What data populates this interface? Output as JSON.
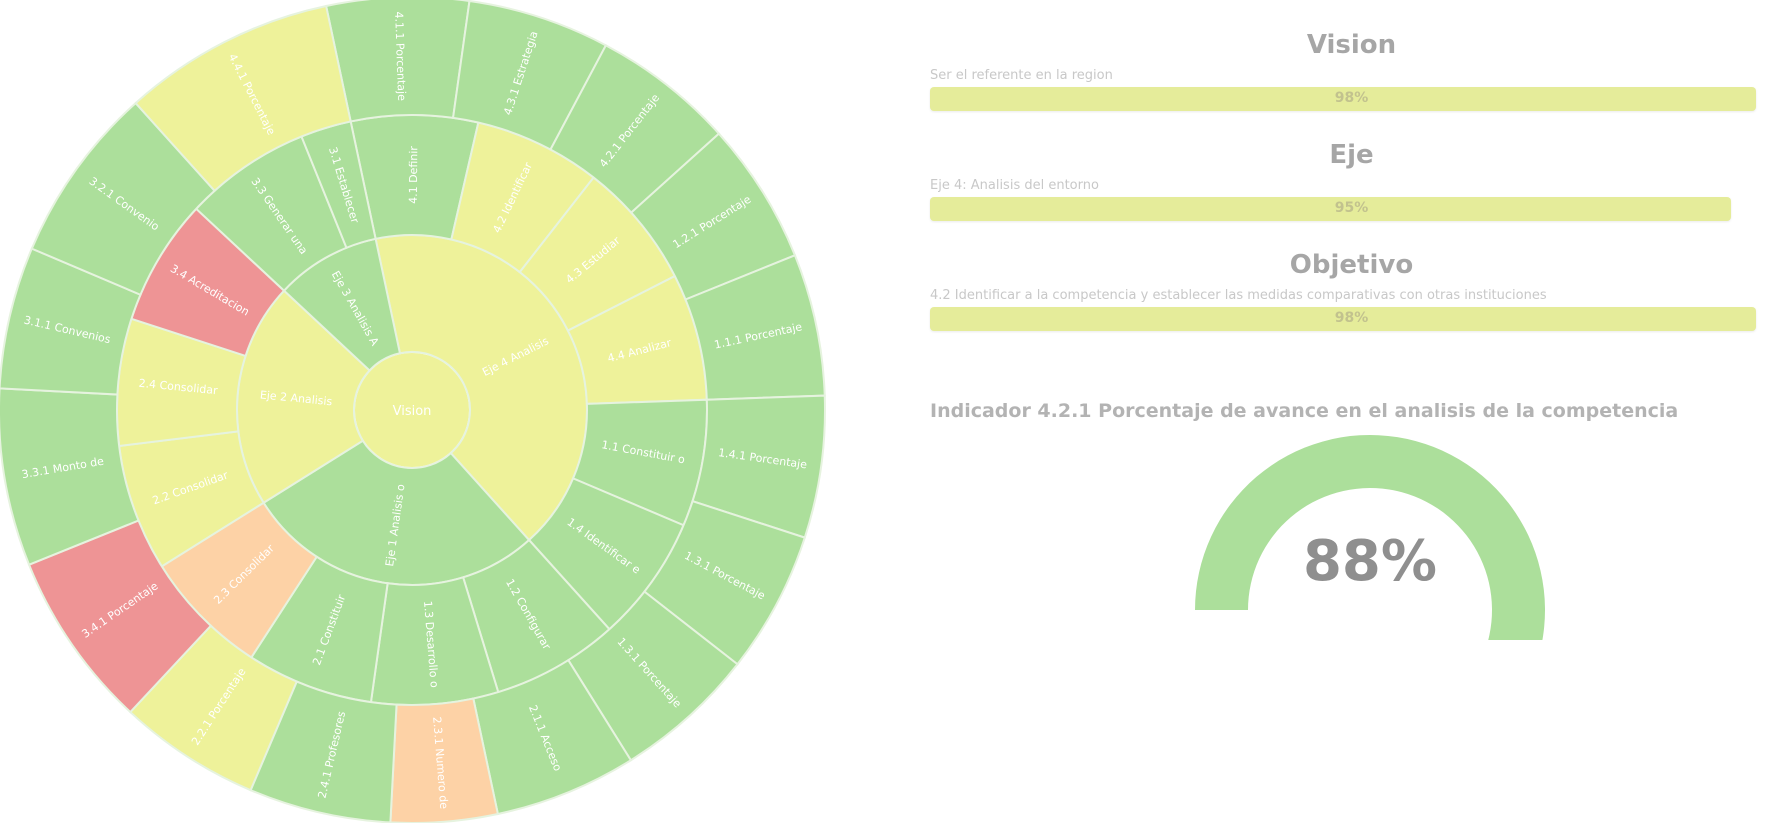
{
  "colors": {
    "green": "#acdf9b",
    "yellow": "#eef29a",
    "orange": "#fdd2a6",
    "red": "#ee9495",
    "bar_fill": "#e5ec9a",
    "divider": "#e6f3df"
  },
  "chart_data": {
    "type": "sunburst",
    "root": "Vision",
    "rings": [
      {
        "level": 1,
        "segments": [
          {
            "label": "Eje 4 Analisis",
            "start": 0,
            "end": 150,
            "color": "yellow"
          },
          {
            "label": "Eje 1 Analisis o",
            "start": 150,
            "end": 250,
            "color": "green"
          },
          {
            "label": "Eje 2 Analisis",
            "start": 250,
            "end": 325,
            "color": "yellow"
          },
          {
            "label": "Eje 3 Analisis A",
            "start": 325,
            "end": 360,
            "color": "green"
          }
        ]
      },
      {
        "level": 2,
        "segments": [
          {
            "label": "4.1 Definir",
            "start": 0,
            "end": 25,
            "color": "green"
          },
          {
            "label": "4.2 Identificar",
            "start": 25,
            "end": 50,
            "color": "yellow"
          },
          {
            "label": "4.3 Estudiar",
            "start": 50,
            "end": 75,
            "color": "yellow"
          },
          {
            "label": "4.4 Analizar",
            "start": 75,
            "end": 100,
            "color": "yellow"
          },
          {
            "label": "1.1 Constituir o",
            "start": 100,
            "end": 125,
            "color": "green"
          },
          {
            "label": "1.4 Identificar e",
            "start": 125,
            "end": 150,
            "color": "green"
          },
          {
            "label": "1.2 Configurar",
            "start": 150,
            "end": 175,
            "color": "green"
          },
          {
            "label": "1.3 Desarrollo o",
            "start": 175,
            "end": 200,
            "color": "green"
          },
          {
            "label": "2.1 Constituir",
            "start": 200,
            "end": 225,
            "color": "green"
          },
          {
            "label": "2.3 Consolidar",
            "start": 225,
            "end": 250,
            "color": "orange"
          },
          {
            "label": "2.2 Consolidar",
            "start": 250,
            "end": 275,
            "color": "yellow"
          },
          {
            "label": "2.4 Consolidar",
            "start": 275,
            "end": 300,
            "color": "yellow"
          },
          {
            "label": "3.4 Acreditacion",
            "start": 300,
            "end": 325,
            "color": "red"
          },
          {
            "label": "3.3 Generar una",
            "start": 325,
            "end": 350,
            "color": "green"
          },
          {
            "label": "3.1 Establecer",
            "start": 350,
            "end": 360,
            "color": "green"
          }
        ]
      },
      {
        "level": 3,
        "segments": [
          {
            "label": "4.1.1 Porcentaje",
            "start": 0,
            "end": 20,
            "color": "green"
          },
          {
            "label": "4.3.1 Estrategia",
            "start": 20,
            "end": 40,
            "color": "green"
          },
          {
            "label": "4.2.1 Porcentaje",
            "start": 40,
            "end": 60,
            "color": "green"
          },
          {
            "label": "1.2.1 Porcentaje",
            "start": 60,
            "end": 80,
            "color": "green"
          },
          {
            "label": "1.1.1 Porcentaje",
            "start": 80,
            "end": 100,
            "color": "green"
          },
          {
            "label": "1.4.1 Porcentaje",
            "start": 100,
            "end": 120,
            "color": "green"
          },
          {
            "label": "1.3.1 Porcentaje",
            "start": 120,
            "end": 140,
            "color": "green"
          },
          {
            "label": "1.3.1 Porcentaje",
            "start": 140,
            "end": 160,
            "color": "green"
          },
          {
            "label": "2.1.1 Acceso",
            "start": 160,
            "end": 180,
            "color": "green"
          },
          {
            "label": "2.3.1 Numero de",
            "start": 180,
            "end": 195,
            "color": "orange"
          },
          {
            "label": "2.4.1 Profesores",
            "start": 195,
            "end": 215,
            "color": "green"
          },
          {
            "label": "2.2.1 Porcentaje",
            "start": 215,
            "end": 235,
            "color": "yellow"
          },
          {
            "label": "3.4.1 Porcentaje",
            "start": 235,
            "end": 260,
            "color": "red"
          },
          {
            "label": "3.3.1 Monto de",
            "start": 260,
            "end": 285,
            "color": "green"
          },
          {
            "label": "3.1.1 Convenios",
            "start": 285,
            "end": 305,
            "color": "green"
          },
          {
            "label": "3.2.1 Convenio",
            "start": 305,
            "end": 330,
            "color": "green"
          },
          {
            "label": "4.4.1 Porcentaje",
            "start": 330,
            "end": 360,
            "color": "yellow"
          }
        ]
      }
    ]
  },
  "panel": {
    "sections": [
      {
        "title": "Vision",
        "subtitle": "Ser el referente en la region",
        "value": 0.98,
        "label": "98%"
      },
      {
        "title": "Eje",
        "subtitle": "Eje 4: Analisis del entorno",
        "value": 0.95,
        "label": "95%"
      },
      {
        "title": "Objetivo",
        "subtitle": "4.2 Identificar a la competencia y establecer las medidas comparativas con otras instituciones",
        "value": 0.98,
        "label": "98%"
      }
    ],
    "indicator_title": "Indicador 4.2.1 Porcentaje de avance en el analisis de la competencia",
    "gauge": {
      "value": 0.88,
      "label": "88%"
    }
  }
}
